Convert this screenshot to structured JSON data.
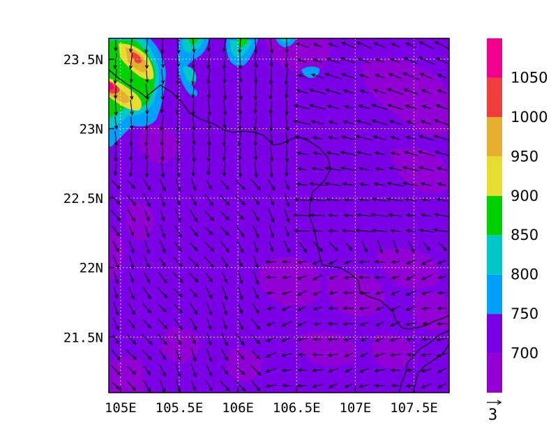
{
  "chart_data": {
    "type": "map",
    "field": "filled contours with wind vectors",
    "lon_range": [
      104.9,
      107.8
    ],
    "lat_range": [
      21.1,
      23.65
    ],
    "x_ticks": [
      "105E",
      "105.5E",
      "106E",
      "106.5E",
      "107E",
      "107.5E"
    ],
    "x_tick_values": [
      105,
      105.5,
      106,
      106.5,
      107,
      107.5
    ],
    "y_ticks": [
      "23.5N",
      "23N",
      "22.5N",
      "22N",
      "21.5N"
    ],
    "y_tick_values": [
      23.5,
      23,
      22.5,
      22,
      21.5
    ],
    "gridlines": true,
    "colorbar": {
      "placement": "right",
      "labels": [
        "1050",
        "1000",
        "950",
        "900",
        "850",
        "800",
        "750",
        "700"
      ],
      "colors": [
        "#9400d3",
        "#7b00e6",
        "#00a0ff",
        "#00c8c8",
        "#00d200",
        "#e6dc32",
        "#e6af2d",
        "#f03c3c",
        "#f0008c"
      ]
    },
    "vector_reference": {
      "label": "3"
    }
  }
}
